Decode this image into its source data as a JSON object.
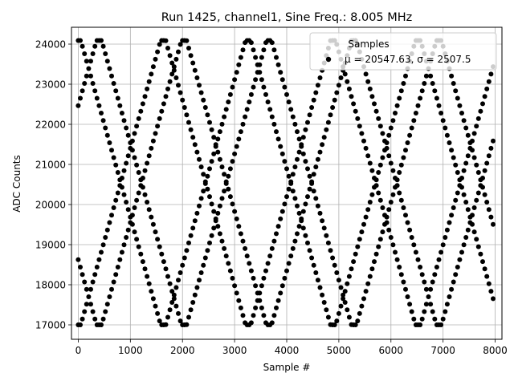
{
  "chart_data": {
    "type": "scatter",
    "title": "Run 1425, channel1, Sine Freq.: 8.005 MHz",
    "xlabel": "Sample #",
    "ylabel": "ADC Counts",
    "xlim": [
      -130,
      8130
    ],
    "ylim": [
      16640,
      24420
    ],
    "xticks": [
      0,
      1000,
      2000,
      3000,
      4000,
      5000,
      6000,
      7000,
      8000
    ],
    "yticks": [
      17000,
      18000,
      19000,
      20000,
      21000,
      22000,
      23000,
      24000
    ],
    "grid": true,
    "legend_position": "top-right",
    "marker_color": "#000000",
    "legend": {
      "title": "Samples",
      "label": "μ = 20547.63, σ = 2507.5"
    },
    "signal": {
      "min_counts": 17000,
      "max_counts": 24090,
      "period_samples": 3260,
      "phases_samples": [
        0,
        400,
        1630,
        2030
      ],
      "last_sample": 7999
    }
  }
}
